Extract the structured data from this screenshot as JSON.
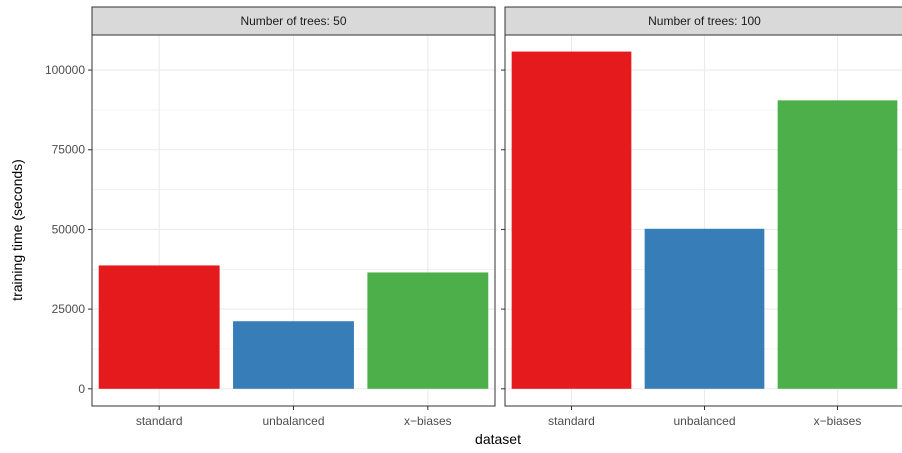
{
  "chart_data": {
    "type": "bar",
    "xlabel": "dataset",
    "ylabel": "training time (seconds)",
    "ylim": [
      -5400,
      111000
    ],
    "yticks": [
      0,
      25000,
      50000,
      75000,
      100000
    ],
    "ytick_labels": [
      "0",
      "25000",
      "50000",
      "75000",
      "100000"
    ],
    "categories": [
      "standard",
      "unbalanced",
      "x−biases"
    ],
    "colors": [
      "#E41A1C",
      "#377EB8",
      "#4DAF4A"
    ],
    "grid": true,
    "legend": "none",
    "panels": [
      {
        "title": "Number of trees: 50",
        "values": [
          38700,
          21200,
          36500
        ]
      },
      {
        "title": "Number of trees: 100",
        "values": [
          105800,
          50200,
          90500
        ]
      }
    ]
  }
}
